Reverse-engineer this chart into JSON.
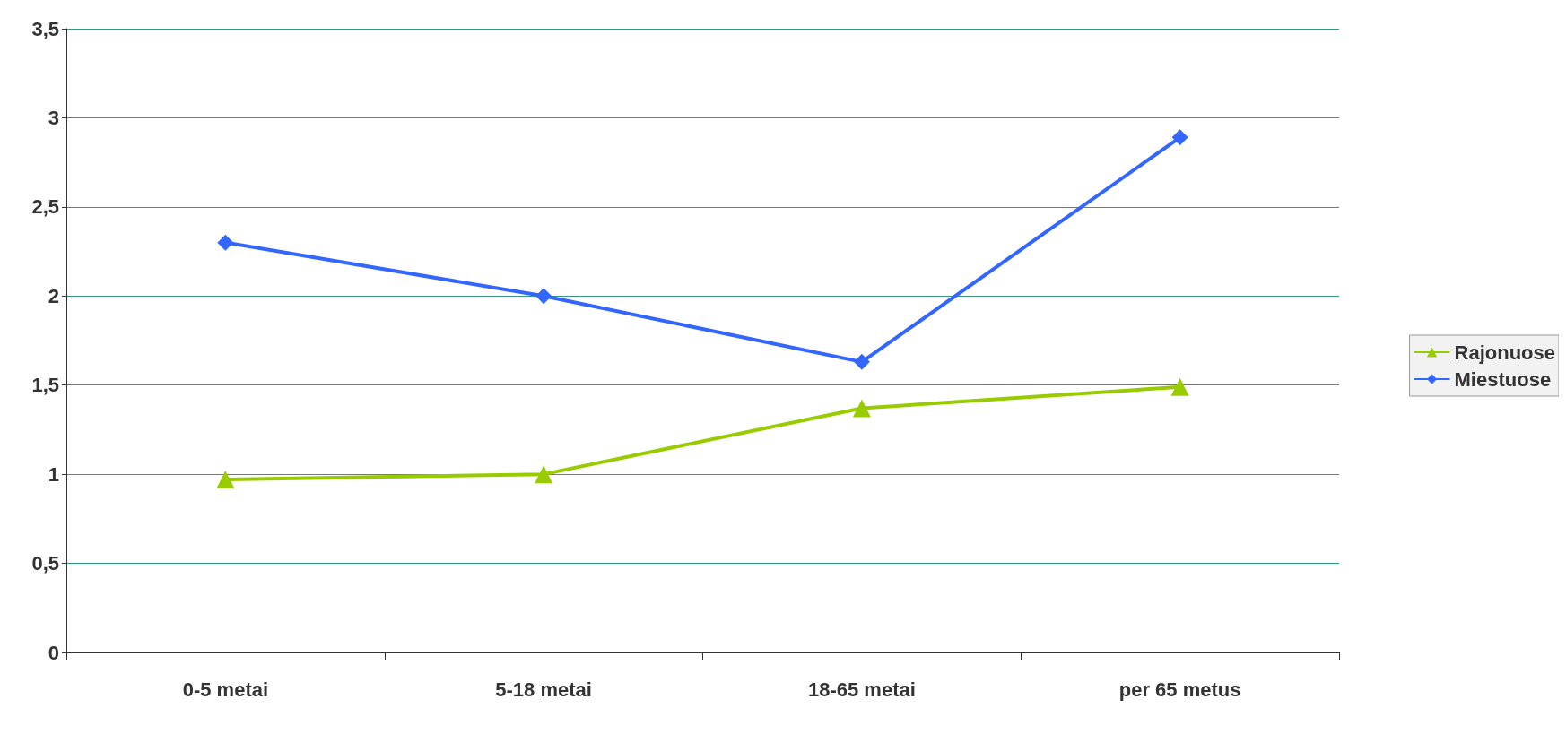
{
  "chart_data": {
    "type": "line",
    "categories": [
      "0-5 metai",
      "5-18 metai",
      "18-65 metai",
      "per 65 metus"
    ],
    "series": [
      {
        "name": "Rajonuose",
        "color": "#99cc00",
        "marker": "triangle",
        "values": [
          0.97,
          1.0,
          1.37,
          1.49
        ]
      },
      {
        "name": "Miestuose",
        "color": "#3366ff",
        "marker": "diamond",
        "values": [
          2.3,
          2.0,
          1.63,
          2.89
        ]
      }
    ],
    "ylim": [
      0,
      3.5
    ],
    "yticks": [
      0,
      {
        "value": 0.5,
        "label": "0,5"
      },
      1,
      {
        "value": 1.5,
        "label": "1,5"
      },
      2,
      {
        "value": 2.5,
        "label": "2,5"
      },
      3,
      {
        "value": 3.5,
        "label": "3,5"
      }
    ],
    "grid": "y",
    "legend": "right",
    "line_style": "solid"
  }
}
